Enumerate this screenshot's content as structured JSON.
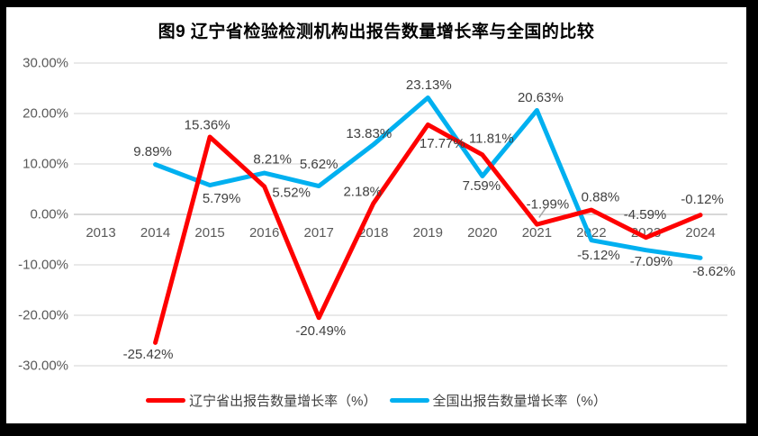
{
  "window": {
    "frame_color": "#000000",
    "background": "#FFFFFF"
  },
  "chart_data": {
    "type": "line",
    "title": "图9  辽宁省检验检测机构出报告数量增长率与全国的比较",
    "xlabel": "",
    "ylabel": "",
    "categories": [
      "2013",
      "2014",
      "2015",
      "2016",
      "2017",
      "2018",
      "2019",
      "2020",
      "2021",
      "2022",
      "2023",
      "2024"
    ],
    "series": [
      {
        "name": "辽宁省出报告数量增长率（%）",
        "color": "#FE0000",
        "values": [
          null,
          -25.42,
          15.36,
          5.52,
          -20.49,
          2.18,
          17.77,
          11.81,
          -1.99,
          0.88,
          -4.59,
          -0.12
        ],
        "label_offsets": [
          null,
          [
            -8,
            13
          ],
          [
            -3,
            -13
          ],
          [
            30,
            7
          ],
          [
            2,
            15
          ],
          [
            -12,
            -13
          ],
          [
            16,
            21
          ],
          [
            10,
            -18
          ],
          [
            12,
            -22,
            1
          ],
          [
            10,
            -14
          ],
          [
            -1,
            -25
          ],
          [
            2,
            -17
          ]
        ]
      },
      {
        "name": "全国出报告数量增长率（%）",
        "color": "#00B0F0",
        "values": [
          null,
          9.89,
          5.79,
          8.21,
          5.62,
          13.83,
          23.13,
          7.59,
          20.63,
          -5.12,
          -7.09,
          -8.62
        ],
        "label_offsets": [
          null,
          [
            -3,
            -14
          ],
          [
            13,
            15
          ],
          [
            9,
            -15
          ],
          [
            0,
            -24
          ],
          [
            -5,
            -12
          ],
          [
            1,
            -14
          ],
          [
            -1,
            11
          ],
          [
            4,
            -14
          ],
          [
            8,
            17
          ],
          [
            6,
            13
          ],
          [
            15,
            15
          ]
        ]
      }
    ],
    "y_ticks": [
      {
        "label": "30.00%",
        "value": 30
      },
      {
        "label": "20.00%",
        "value": 20
      },
      {
        "label": "10.00%",
        "value": 10
      },
      {
        "label": "0.00%",
        "value": 0
      },
      {
        "label": "-10.00%",
        "value": -10
      },
      {
        "label": "-20.00%",
        "value": -20
      },
      {
        "label": "-30.00%",
        "value": -30
      }
    ],
    "ylim": [
      -30,
      30
    ],
    "grid": true,
    "legend_position": "bottom",
    "colors": {
      "gridline": "#DCDCDC",
      "zero_line": "#C0C0C0",
      "axis_text": "#595959",
      "data_label_text": "#404040",
      "leader_line": "#A6A6A6"
    }
  },
  "legend": {
    "items": [
      {
        "label": "辽宁省出报告数量增长率（%）",
        "color": "#FE0000"
      },
      {
        "label": "全国出报告数量增长率（%）",
        "color": "#00B0F0"
      }
    ]
  }
}
